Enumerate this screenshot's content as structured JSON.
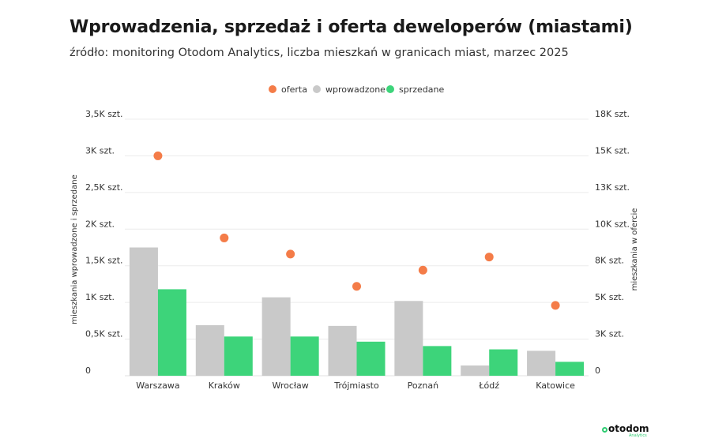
{
  "header": {
    "title": "Wprowadzenia, sprzedaż i oferta deweloperów (miastami)",
    "subtitle": "źródło: monitoring Otodom Analytics, liczba mieszkań w granicach miast, marzec 2025"
  },
  "brand": {
    "name": "otodom",
    "tagline": "Analytics"
  },
  "colors": {
    "oferta": "#f47c48",
    "wprowadzone": "#c9c9c9",
    "sprzedane": "#3dd47a"
  },
  "chart_data": {
    "type": "bar",
    "categories": [
      "Warszawa",
      "Kraków",
      "Wrocław",
      "Trójmiasto",
      "Poznań",
      "Łódź",
      "Katowice"
    ],
    "series": [
      {
        "name": "wprowadzone",
        "type": "bar",
        "axis": "left",
        "values": [
          1750,
          690,
          1070,
          680,
          1020,
          140,
          340
        ]
      },
      {
        "name": "sprzedane",
        "type": "bar",
        "axis": "left",
        "values": [
          1180,
          535,
          535,
          465,
          405,
          360,
          190
        ]
      },
      {
        "name": "oferta",
        "type": "scatter",
        "axis": "right",
        "values": [
          15000,
          9400,
          8300,
          6100,
          7200,
          8100,
          4800
        ]
      }
    ],
    "legend": {
      "position": "top-center",
      "order": [
        "oferta",
        "wprowadzone",
        "sprzedane"
      ]
    },
    "y_left": {
      "label": "mieszkania wprowadzone i sprzedane",
      "ylim": [
        0,
        3500
      ],
      "ticks": [
        "0",
        "0,5K szt.",
        "1K szt.",
        "1,5K szt.",
        "2K szt.",
        "2,5K szt.",
        "3K szt.",
        "3,5K szt."
      ]
    },
    "y_right": {
      "label": "mieszkania w ofercie",
      "ylim": [
        0,
        17500
      ],
      "ticks": [
        "0",
        "3K szt.",
        "5K szt.",
        "8K szt.",
        "10K szt.",
        "13K szt.",
        "15K szt.",
        "18K szt."
      ]
    },
    "grid": true
  }
}
